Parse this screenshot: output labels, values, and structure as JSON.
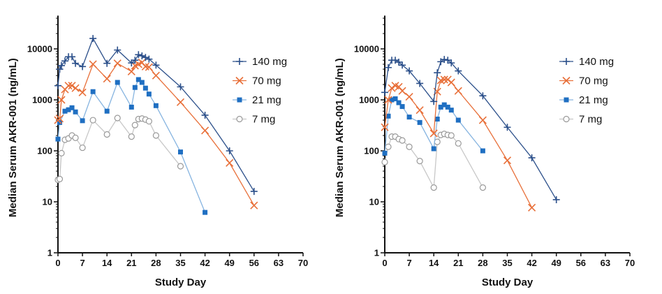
{
  "chart_data": [
    {
      "type": "line",
      "xlabel": "Study Day",
      "ylabel": "Median Serum AKR-001 (ng/mL)",
      "xlim": [
        0,
        70
      ],
      "xticks": [
        0,
        7,
        14,
        21,
        28,
        35,
        42,
        49,
        56,
        63,
        70
      ],
      "ylim": [
        1,
        45000
      ],
      "yscale": "log",
      "yticks": [
        1,
        10,
        100,
        1000,
        10000
      ],
      "legend": "right",
      "grid": false,
      "series": [
        {
          "name": "140 mg",
          "color": "#2b4f8a",
          "line": "#2b4f8a",
          "marker": "plus",
          "x": [
            0,
            0.5,
            1,
            2,
            3,
            4,
            5,
            7,
            10,
            14,
            17,
            21,
            22,
            23,
            24,
            25,
            26,
            28,
            35,
            42,
            49,
            56
          ],
          "y": [
            1900,
            4000,
            4700,
            5800,
            7000,
            7000,
            5200,
            4500,
            16000,
            5200,
            9500,
            5300,
            6000,
            7700,
            7300,
            6800,
            6300,
            4800,
            1800,
            500,
            100,
            16
          ]
        },
        {
          "name": "70 mg",
          "color": "#e8703a",
          "line": "#e8703a",
          "marker": "x",
          "x": [
            0,
            0.5,
            1,
            2,
            3,
            4,
            5,
            7,
            10,
            14,
            17,
            21,
            22,
            23,
            24,
            25,
            26,
            28,
            35,
            42,
            49,
            56
          ],
          "y": [
            400,
            430,
            1000,
            1600,
            1900,
            1900,
            1700,
            1400,
            5000,
            2600,
            5200,
            3600,
            4700,
            5000,
            5400,
            4500,
            4400,
            3000,
            900,
            250,
            58,
            8.5
          ]
        },
        {
          "name": "21 mg",
          "color": "#1f6fc2",
          "line": "#86b4e0",
          "marker": "square",
          "x": [
            0,
            0.5,
            2,
            3,
            4,
            5,
            7,
            10,
            14,
            17,
            21,
            22,
            23,
            24,
            25,
            26,
            28,
            35,
            42
          ],
          "y": [
            170,
            360,
            600,
            640,
            700,
            580,
            390,
            1450,
            600,
            2200,
            720,
            1750,
            2500,
            2200,
            1700,
            1300,
            770,
            95,
            6.2
          ]
        },
        {
          "name": "7 mg",
          "color": "#999999",
          "line": "#c8c8c8",
          "marker": "circle",
          "x": [
            0,
            0.5,
            1,
            2,
            3,
            4,
            5,
            7,
            10,
            14,
            17,
            21,
            22,
            23,
            24,
            25,
            26,
            28,
            35
          ],
          "y": [
            27,
            28,
            90,
            165,
            175,
            200,
            180,
            115,
            400,
            210,
            440,
            190,
            320,
            420,
            430,
            410,
            380,
            200,
            50
          ]
        }
      ]
    },
    {
      "type": "line",
      "xlabel": "Study Day",
      "ylabel": "Median Serum AKR-001 (ng/mL)",
      "xlim": [
        0,
        70
      ],
      "xticks": [
        0,
        7,
        14,
        21,
        28,
        35,
        42,
        49,
        56,
        63,
        70
      ],
      "ylim": [
        1,
        45000
      ],
      "yscale": "log",
      "yticks": [
        1,
        10,
        100,
        1000,
        10000
      ],
      "legend": "right",
      "grid": false,
      "series": [
        {
          "name": "140 mg",
          "color": "#2b4f8a",
          "line": "#2b4f8a",
          "marker": "plus",
          "x": [
            0,
            1,
            2,
            3,
            4,
            5,
            7,
            10,
            14,
            15,
            16,
            17,
            18,
            19,
            21,
            28,
            35,
            42,
            49
          ],
          "y": [
            1400,
            4300,
            6000,
            6000,
            5500,
            4800,
            3700,
            2100,
            930,
            3400,
            5600,
            6200,
            6000,
            5300,
            3700,
            1200,
            290,
            73,
            11
          ]
        },
        {
          "name": "70 mg",
          "color": "#e8703a",
          "line": "#e8703a",
          "marker": "x",
          "x": [
            0,
            1,
            2,
            3,
            4,
            5,
            7,
            10,
            14,
            15,
            16,
            17,
            18,
            19,
            21,
            28,
            35,
            42
          ],
          "y": [
            290,
            1000,
            1700,
            1900,
            1800,
            1500,
            1150,
            630,
            220,
            1450,
            2400,
            2500,
            2500,
            2200,
            1500,
            400,
            65,
            7.7
          ]
        },
        {
          "name": "21 mg",
          "color": "#1f6fc2",
          "line": "#86b4e0",
          "marker": "square",
          "x": [
            0,
            1,
            2,
            3,
            4,
            5,
            7,
            10,
            14,
            15,
            16,
            17,
            18,
            19,
            21,
            28
          ],
          "y": [
            90,
            480,
            1000,
            1050,
            880,
            740,
            460,
            360,
            110,
            420,
            720,
            800,
            720,
            630,
            400,
            100
          ]
        },
        {
          "name": "7 mg",
          "color": "#999999",
          "line": "#c8c8c8",
          "marker": "circle",
          "x": [
            0,
            1,
            2,
            3,
            4,
            5,
            7,
            10,
            14,
            15,
            16,
            17,
            18,
            19,
            21,
            28
          ],
          "y": [
            60,
            120,
            190,
            190,
            170,
            160,
            120,
            63,
            19,
            150,
            205,
            215,
            205,
            200,
            140,
            19
          ]
        }
      ]
    }
  ]
}
